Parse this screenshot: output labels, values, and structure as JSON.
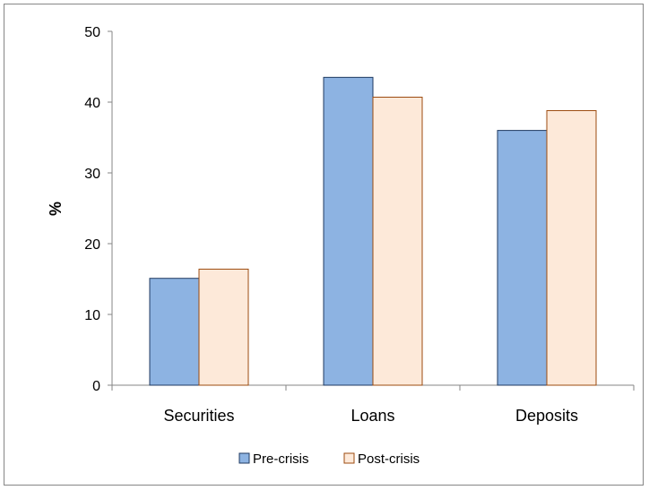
{
  "chart_data": {
    "type": "bar",
    "title": "",
    "xlabel": "",
    "ylabel": "%",
    "ylim": [
      0,
      50
    ],
    "yticks": [
      "0",
      "10",
      "20",
      "30",
      "40",
      "50"
    ],
    "grid": false,
    "legend_position": "bottom",
    "categories": [
      "Securities",
      "Loans",
      "Deposits"
    ],
    "series": [
      {
        "name": "Pre-crisis",
        "values": [
          15.1,
          43.5,
          36.0
        ],
        "fill": "#8DB3E2",
        "stroke": "#1F3A60"
      },
      {
        "name": "Post-crisis",
        "values": [
          16.4,
          40.7,
          38.8
        ],
        "fill": "#FDE9D9",
        "stroke": "#9C4A0E"
      }
    ]
  }
}
